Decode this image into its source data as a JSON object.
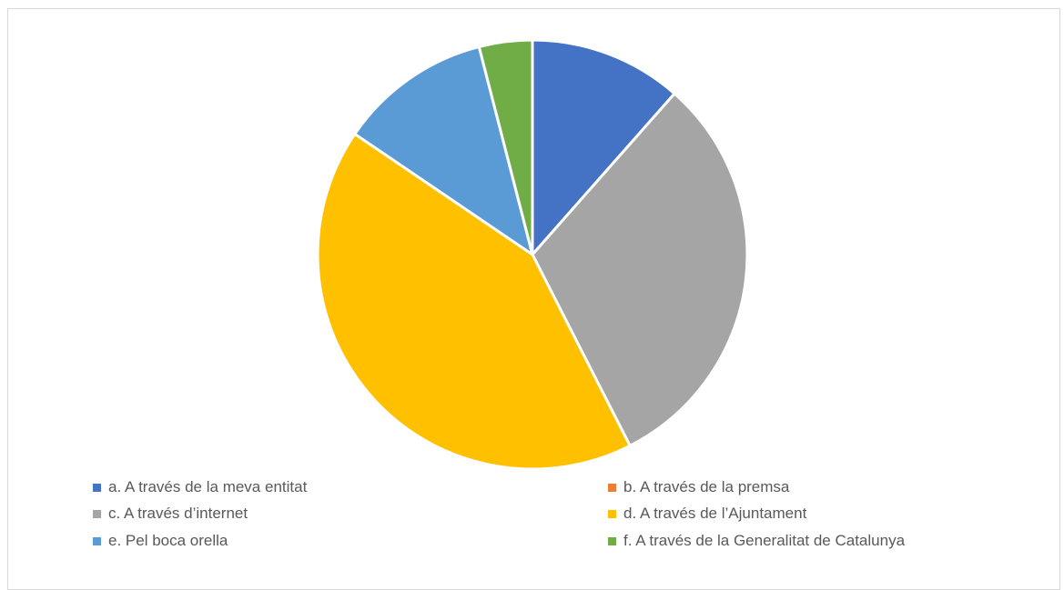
{
  "chart_data": {
    "type": "pie",
    "legend_position": "bottom",
    "slices": [
      {
        "label": "a. A través de la meva entitat",
        "value": 11.5,
        "color": "#4472C4"
      },
      {
        "label": "b. A través de la premsa",
        "value": 0,
        "color": "#ED7D31"
      },
      {
        "label": "c. A través d’internet",
        "value": 31,
        "color": "#A5A5A5"
      },
      {
        "label": "d. A través de l’Ajuntament",
        "value": 42,
        "color": "#FFC000"
      },
      {
        "label": "e. Pel boca orella",
        "value": 11.5,
        "color": "#5B9BD5"
      },
      {
        "label": "f. A través de la Generalitat de Catalunya",
        "value": 4,
        "color": "#70AD47"
      }
    ]
  }
}
